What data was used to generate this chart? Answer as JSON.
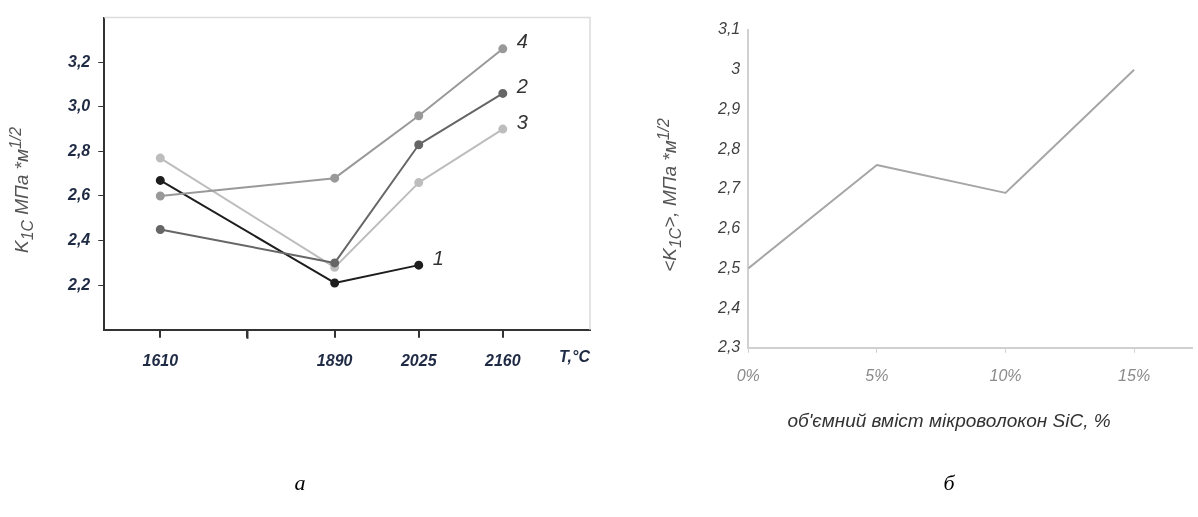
{
  "chart_data": [
    {
      "type": "line",
      "xlabel": "T,°C",
      "ylabel": "K$_{1C}$ МПа *м$^{1/2}$",
      "x": [
        1610,
        1890,
        2025,
        2160
      ],
      "xlim": [
        1520,
        2300
      ],
      "xticks": [
        1610,
        {
          "value": 1750,
          "label": null
        },
        1890,
        2025,
        2160
      ],
      "ylim": [
        2.0,
        3.4
      ],
      "yticks": [
        {
          "value": 2.2,
          "label": "2,2"
        },
        {
          "value": 2.4,
          "label": "2,4"
        },
        {
          "value": 2.6,
          "label": "2,6"
        },
        {
          "value": 2.8,
          "label": "2,8"
        },
        {
          "value": 3.0,
          "label": "3,0"
        },
        {
          "value": 3.2,
          "label": "3,2"
        }
      ],
      "marker": "circle",
      "annotations": [
        "а"
      ],
      "series": [
        {
          "name": "4",
          "color": "#999999",
          "values": [
            2.6,
            2.68,
            2.96,
            3.26
          ]
        },
        {
          "name": "2",
          "color": "#666666",
          "values": [
            2.45,
            2.3,
            2.83,
            3.06
          ]
        },
        {
          "name": "3",
          "color": "#bdbdbd",
          "values": [
            2.77,
            2.28,
            2.66,
            2.9
          ]
        },
        {
          "name": "1",
          "color": "#1e1e1e",
          "values": [
            2.67,
            2.21,
            2.29,
            null
          ]
        }
      ]
    },
    {
      "type": "line",
      "xlabel": "об'ємний вміст мікроволокон SiC, %",
      "ylabel": "<K$_{1C}$>, МПа *м$^{1/2}$",
      "categories": [
        "0%",
        "5%",
        "10%",
        "15%"
      ],
      "values": [
        2.5,
        2.76,
        2.69,
        3.0
      ],
      "color": "#a6a6a6",
      "ylim": [
        2.3,
        3.1
      ],
      "yticks": [
        {
          "value": 2.3,
          "label": "2,3"
        },
        {
          "value": 2.4,
          "label": "2,4"
        },
        {
          "value": 2.5,
          "label": "2,5"
        },
        {
          "value": 2.6,
          "label": "2,6"
        },
        {
          "value": 2.7,
          "label": "2,7"
        },
        {
          "value": 2.8,
          "label": "2,8"
        },
        {
          "value": 2.9,
          "label": "2,9"
        },
        {
          "value": 3,
          "label": "3"
        },
        {
          "value": 3.1,
          "label": "3,1"
        }
      ],
      "marker": "none",
      "annotations": [
        "б"
      ]
    }
  ]
}
